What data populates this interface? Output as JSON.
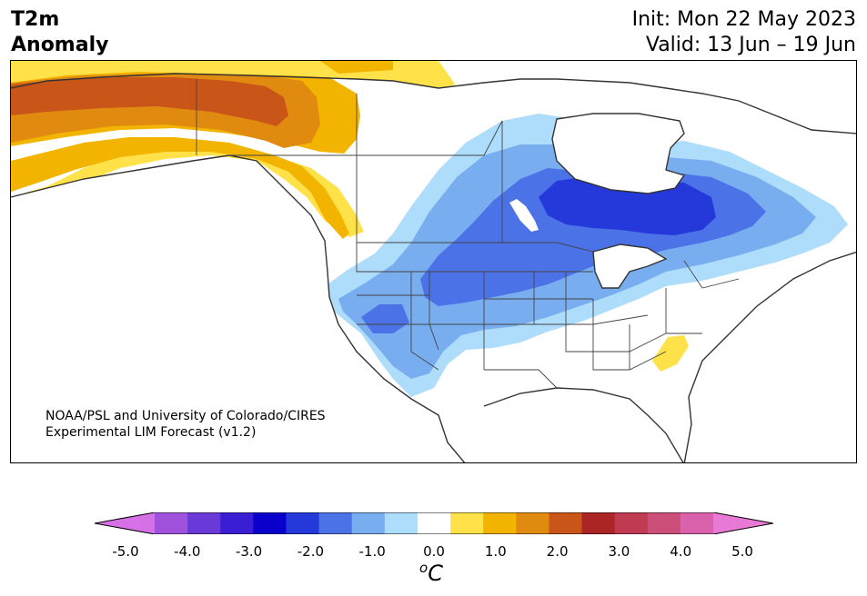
{
  "title": {
    "left_line1": "T2m",
    "left_line2": "Anomaly",
    "init": "Init: Mon 22 May 2023",
    "valid": "Valid: 13 Jun – 19 Jun"
  },
  "credit": {
    "line1": "NOAA/PSL and University of Colorado/CIRES",
    "line2": "Experimental LIM Forecast (v1.2)"
  },
  "colorbar": {
    "colors": [
      "#d670e6",
      "#a052dc",
      "#6a3ad8",
      "#3a1ed3",
      "#0a00cc",
      "#2538da",
      "#4b72e6",
      "#78aef0",
      "#aedcfb",
      "#ffffff",
      "#ffe24a",
      "#f3b400",
      "#e08b10",
      "#c95518",
      "#ad2424",
      "#c03a52",
      "#cc4f7a",
      "#da62ac",
      "#e87ad6"
    ],
    "ticks": [
      "-5.0",
      "-4.0",
      "-3.0",
      "-2.0",
      "-1.0",
      "0.0",
      "1.0",
      "2.0",
      "3.0",
      "4.0",
      "5.0"
    ],
    "unit_sup": "o",
    "unit": "C"
  },
  "map": {
    "colors": {
      "ocean": "#ffffff",
      "warm_dark": "#c95518",
      "warm_mid": "#e08b10",
      "warm": "#f3b400",
      "warm_light": "#ffe24a",
      "cool_light": "#aedcfb",
      "cool": "#78aef0",
      "cool_mid": "#4b72e6",
      "cool_dark": "#2538da"
    }
  }
}
